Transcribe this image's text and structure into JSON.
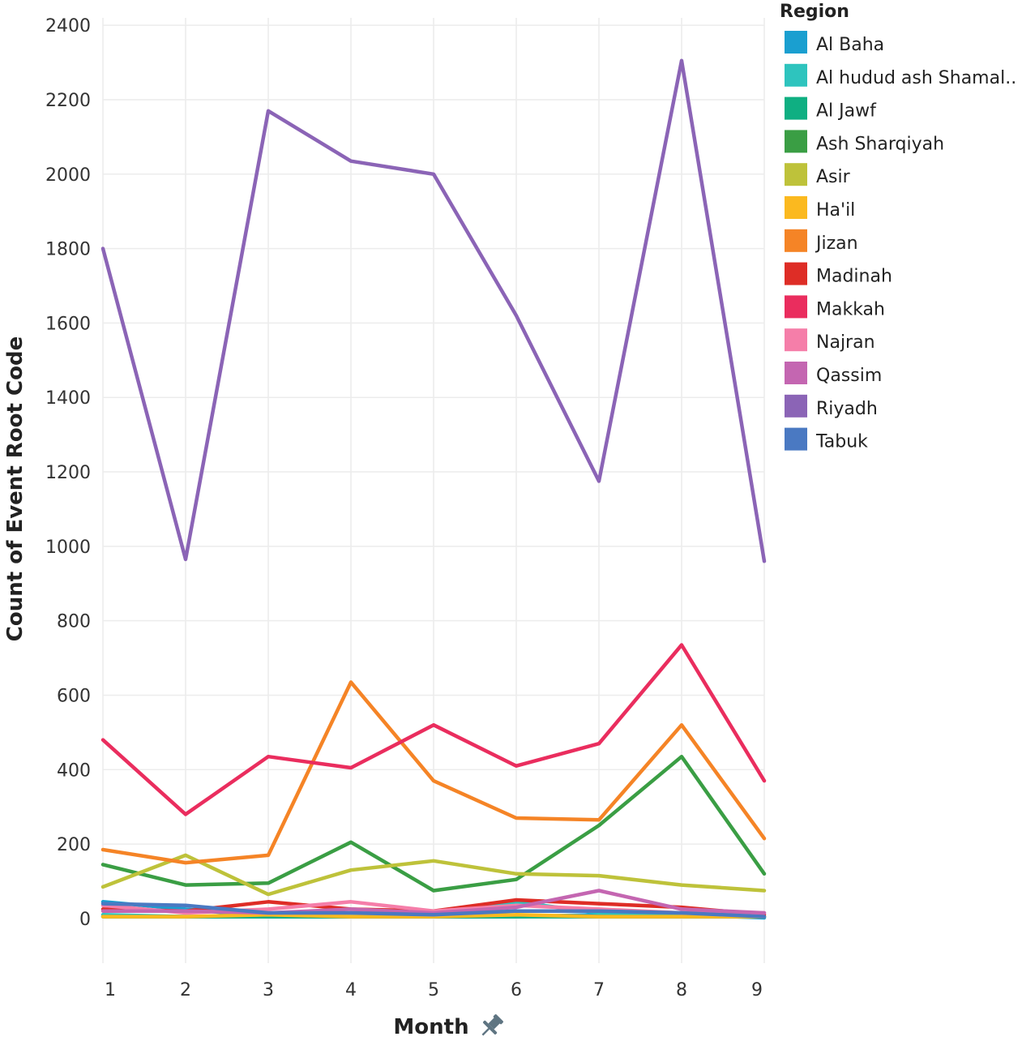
{
  "chart_data": {
    "type": "line",
    "title": "",
    "xlabel": "Month",
    "ylabel": "Count of Event Root Code",
    "x": [
      1,
      2,
      3,
      4,
      5,
      6,
      7,
      8,
      9
    ],
    "xticks": [
      "1",
      "2",
      "3",
      "4",
      "5",
      "6",
      "7",
      "8",
      "9"
    ],
    "ylim": [
      -120,
      2420
    ],
    "yticks": [
      "0",
      "200",
      "400",
      "600",
      "800",
      "1000",
      "1200",
      "1400",
      "1600",
      "1800",
      "2000",
      "2200",
      "2400"
    ],
    "grid": true,
    "legend": {
      "title": "Region",
      "placement": "right"
    },
    "series": [
      {
        "name": "Al Baha",
        "color": "#1A9FD0",
        "values": [
          45,
          25,
          5,
          5,
          5,
          5,
          10,
          10,
          2
        ]
      },
      {
        "name": "Al hudud ash Shamal..",
        "color": "#2EC4BE",
        "values": [
          10,
          5,
          5,
          5,
          5,
          45,
          15,
          10,
          5
        ]
      },
      {
        "name": "Al Jawf",
        "color": "#0FAF82",
        "values": [
          5,
          5,
          5,
          5,
          5,
          5,
          5,
          5,
          5
        ]
      },
      {
        "name": "Ash Sharqiyah",
        "color": "#3A9E44",
        "values": [
          145,
          90,
          95,
          205,
          75,
          105,
          250,
          435,
          120
        ]
      },
      {
        "name": "Asir",
        "color": "#BEC23A",
        "values": [
          85,
          170,
          65,
          130,
          155,
          120,
          115,
          90,
          75
        ]
      },
      {
        "name": "Ha'il",
        "color": "#FBB91F",
        "values": [
          5,
          5,
          10,
          5,
          5,
          10,
          5,
          5,
          5
        ]
      },
      {
        "name": "Jizan",
        "color": "#F58426",
        "values": [
          185,
          150,
          170,
          635,
          370,
          270,
          265,
          520,
          215
        ]
      },
      {
        "name": "Madinah",
        "color": "#DE2D26",
        "values": [
          25,
          20,
          45,
          25,
          20,
          50,
          40,
          30,
          10
        ]
      },
      {
        "name": "Makkah",
        "color": "#EA2D5E",
        "values": [
          480,
          280,
          435,
          405,
          520,
          410,
          470,
          735,
          370
        ]
      },
      {
        "name": "Najran",
        "color": "#F57EA9",
        "values": [
          35,
          15,
          25,
          45,
          20,
          35,
          25,
          15,
          15
        ]
      },
      {
        "name": "Qassim",
        "color": "#C466B1",
        "values": [
          20,
          20,
          15,
          25,
          15,
          30,
          75,
          25,
          15
        ]
      },
      {
        "name": "Riyadh",
        "color": "#8B64B6",
        "values": [
          1800,
          965,
          2170,
          2035,
          2000,
          1620,
          1175,
          2305,
          960
        ]
      },
      {
        "name": "Tabuk",
        "color": "#4A79C2",
        "values": [
          40,
          35,
          15,
          15,
          10,
          20,
          20,
          15,
          5
        ]
      }
    ]
  },
  "ui": {
    "xlabel_pin_icon": "pin-icon"
  }
}
